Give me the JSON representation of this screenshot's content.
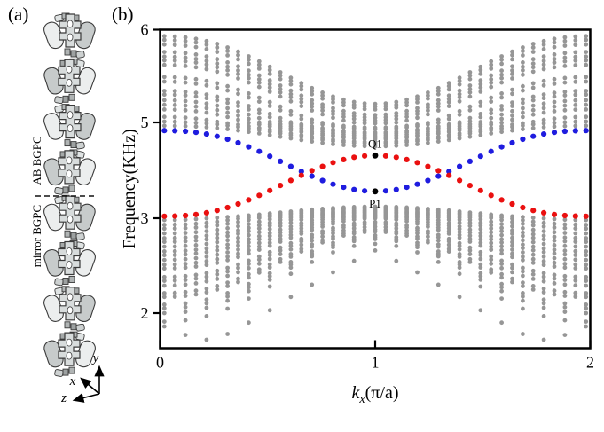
{
  "panels": {
    "a_label": "(a)",
    "b_label": "(b)"
  },
  "panel_a": {
    "annotation_top": "AB BGPC",
    "annotation_bottom": "mirror BGPC",
    "axis_labels": {
      "x": "x",
      "y": "y",
      "z": "z"
    }
  },
  "chart_data": {
    "type": "scatter",
    "title": "",
    "xlabel": "kx(π/a)",
    "xlabel_parts": {
      "base": "k",
      "sub": "x",
      "rest": "(π/a)"
    },
    "ylabel": "Frequency(KHz)",
    "xlim": [
      0,
      2
    ],
    "x_ticks": [
      {
        "k": 0,
        "label": "0"
      },
      {
        "k": 1,
        "label": "1"
      },
      {
        "k": 2,
        "label": "2"
      }
    ],
    "y_ticks": [
      {
        "f": 6,
        "label": "6"
      },
      {
        "f": 5,
        "label": "5"
      },
      {
        "f": 3,
        "label": "3"
      },
      {
        "f": 2,
        "label": "2"
      }
    ],
    "grid": false,
    "legend": false,
    "k_columns": {
      "start": 0.02,
      "end": 1.98,
      "count": 41
    },
    "colors": {
      "bulk": "#969696",
      "edge_red": "#ea1010",
      "edge_blue": "#1f1cdf",
      "marker": "#000000"
    },
    "series": {
      "edge_state_red": {
        "name": "topological edge state (red)",
        "f_edge": 3.04,
        "f_center": 4.31,
        "power": 1.3
      },
      "edge_state_blue": {
        "name": "topological edge state (blue)",
        "f_edge": 4.83,
        "f_center": 3.56,
        "power": 1.3
      },
      "bulk_upper": {
        "name": "upper bulk bands",
        "power": 1.2,
        "bands": [
          {
            "e": 5.93,
            "c": 5.2
          },
          {
            "e": 5.89,
            "c": 5.17
          },
          {
            "e": 5.84,
            "c": 5.14
          },
          {
            "e": 5.76,
            "c": 5.08
          },
          {
            "e": 5.71,
            "c": 5.05
          },
          {
            "e": 5.67,
            "c": 5.02
          },
          {
            "e": 5.62,
            "c": 4.98
          },
          {
            "e": 5.49,
            "c": 4.89
          },
          {
            "e": 5.44,
            "c": 4.86
          },
          {
            "e": 5.34,
            "c": 4.79
          },
          {
            "e": 5.3,
            "c": 4.76
          },
          {
            "e": 5.24,
            "c": 4.72
          },
          {
            "e": 5.19,
            "c": 4.68
          },
          {
            "e": 5.14,
            "c": 4.65
          },
          {
            "e": 5.06,
            "c": 4.59
          },
          {
            "e": 5.01,
            "c": 4.56
          },
          {
            "e": 4.93,
            "c": 4.5
          }
        ]
      },
      "bulk_lower": {
        "name": "lower bulk bands",
        "power": 1.2,
        "bands": [
          {
            "e": 2.98,
            "c": 3.24
          },
          {
            "e": 2.93,
            "c": 3.22
          },
          {
            "e": 2.89,
            "c": 3.2
          },
          {
            "e": 2.84,
            "c": 3.17
          },
          {
            "e": 2.79,
            "c": 3.15
          },
          {
            "e": 2.75,
            "c": 3.13
          },
          {
            "e": 2.7,
            "c": 3.11
          },
          {
            "e": 2.65,
            "c": 3.08
          },
          {
            "e": 2.61,
            "c": 3.06
          },
          {
            "e": 2.56,
            "c": 3.04
          },
          {
            "e": 2.51,
            "c": 3.02
          },
          {
            "e": 2.47,
            "c": 3.0
          },
          {
            "e": 2.38,
            "c": 2.96
          },
          {
            "e": 2.34,
            "c": 2.94
          },
          {
            "e": 2.29,
            "c": 2.91
          },
          {
            "e": 2.21,
            "c": 2.88
          },
          {
            "e": 2.17,
            "c": 2.86
          },
          {
            "e": 2.09,
            "c": 2.82,
            "sparse": true
          },
          {
            "e": 2.05,
            "c": 2.8,
            "sparse": true
          },
          {
            "e": 2.0,
            "c": 2.78,
            "sparse": true
          },
          {
            "e": 1.91,
            "c": 2.73,
            "sparse": true
          }
        ]
      },
      "bulk_lowest_dip_band": {
        "name": "lowest bulk band (sparse)",
        "points": [
          [
            0.02,
            1.86
          ],
          [
            0.118,
            1.77
          ],
          [
            0.216,
            1.72
          ],
          [
            0.314,
            1.78
          ],
          [
            0.412,
            1.9
          ],
          [
            0.51,
            2.03
          ],
          [
            0.608,
            2.17
          ],
          [
            0.706,
            2.3
          ],
          [
            0.804,
            2.43
          ],
          [
            0.902,
            2.55
          ],
          [
            1.0,
            2.66
          ],
          [
            1.098,
            2.55
          ],
          [
            1.196,
            2.43
          ],
          [
            1.294,
            2.3
          ],
          [
            1.392,
            2.17
          ],
          [
            1.49,
            2.03
          ],
          [
            1.588,
            1.9
          ],
          [
            1.686,
            1.78
          ],
          [
            1.784,
            1.72
          ],
          [
            1.882,
            1.77
          ],
          [
            1.98,
            1.86
          ]
        ]
      }
    },
    "markers": [
      {
        "label": "Q1",
        "k": 1.0,
        "f": 4.31,
        "label_side": "above"
      },
      {
        "label": "P1",
        "k": 1.0,
        "f": 3.56,
        "label_side": "below"
      }
    ]
  }
}
